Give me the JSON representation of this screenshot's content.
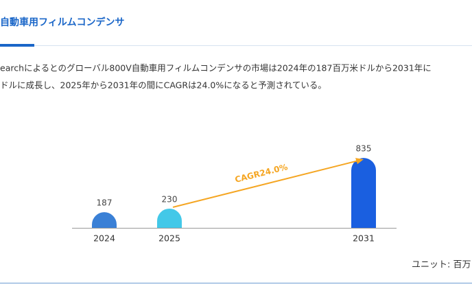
{
  "header": {
    "title": "自動車用フィルムコンデンサ"
  },
  "paragraph": [
    "earchによるとのグローバル800V自動車用フィルムコンデンサの市場は2024年の187百万米ドルから2031年に",
    "ドルに成長し、2025年から2031年の間にCAGRは24.0%になると予測されている。"
  ],
  "chart_data": {
    "type": "bar",
    "categories": [
      "2024",
      "2025",
      "2031"
    ],
    "values": [
      187,
      230,
      835
    ],
    "colors": [
      "#3a80d6",
      "#43c8e8",
      "#1a5fe0"
    ],
    "ylim": [
      0,
      1000
    ],
    "annotation": "CAGR24.0%",
    "annotation_color": "#f5a623",
    "unit_label": "ユニット: 百万"
  }
}
